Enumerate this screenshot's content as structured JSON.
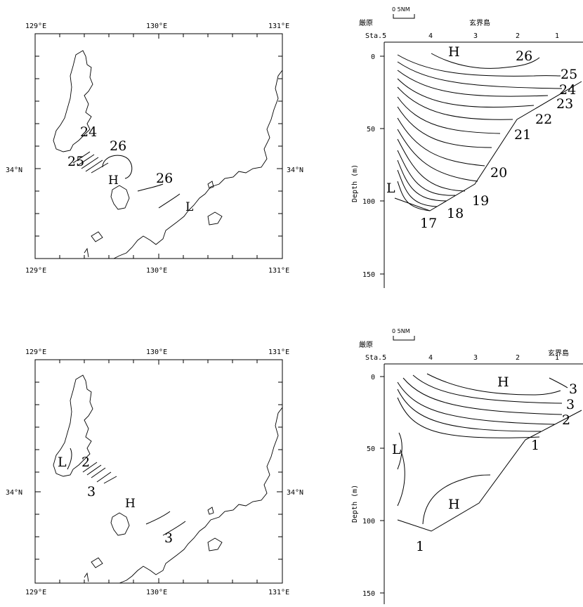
{
  "panels": [
    {
      "map": {
        "lon_labels_top": [
          "129°E",
          "130°E",
          "131°E"
        ],
        "lon_labels_bottom": [
          "129°E",
          "130°E",
          "131°E"
        ],
        "lat_label_left": "34°N",
        "lat_label_right": "34°N",
        "contour_labels": [
          "24",
          "25",
          "26",
          "26"
        ],
        "highs": [
          "H"
        ],
        "lows": [
          "L"
        ]
      },
      "section": {
        "scale_label": "0  5NM",
        "place_left": "厳原",
        "place_right": "玄界島",
        "station_prefix": "Sta.5",
        "stations": [
          "4",
          "3",
          "2",
          "1"
        ],
        "ylabel": "Depth (m)",
        "depth_ticks": [
          "0",
          "50",
          "100",
          "150"
        ],
        "contour_labels": [
          "26",
          "25",
          "24",
          "23",
          "22",
          "21",
          "20",
          "19",
          "18",
          "17"
        ],
        "highs": [
          "H"
        ],
        "lows": [
          "L"
        ]
      }
    },
    {
      "map": {
        "lon_labels_top": [
          "129°E",
          "130°E",
          "131°E"
        ],
        "lon_labels_bottom": [
          "129°E",
          "130°E",
          "131°E"
        ],
        "lat_label_left": "34°N",
        "lat_label_right": "34°N",
        "contour_labels": [
          "2",
          "3",
          "3"
        ],
        "highs": [
          "H"
        ],
        "lows": [
          "L"
        ]
      },
      "section": {
        "scale_label": "0  5NM",
        "place_left": "厳原",
        "place_right": "玄界島",
        "station_prefix": "Sta.5",
        "stations": [
          "4",
          "3",
          "2",
          "1"
        ],
        "ylabel": "Depth (m)",
        "depth_ticks": [
          "0",
          "50",
          "100",
          "150"
        ],
        "contour_labels": [
          "3",
          "3",
          "2",
          "1",
          "1"
        ],
        "highs": [
          "H",
          "H"
        ],
        "lows": [
          "L"
        ]
      }
    }
  ]
}
